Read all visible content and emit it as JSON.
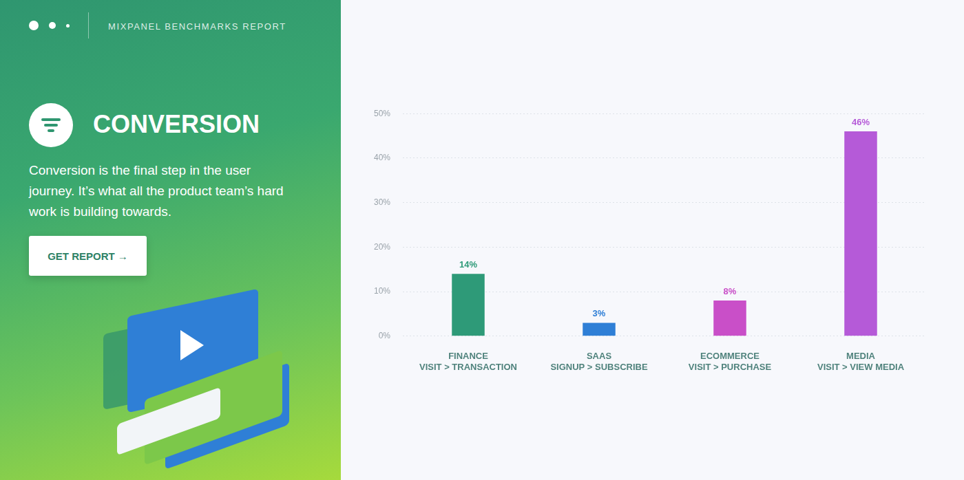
{
  "page": {
    "header": "MIXPANEL BENCHMARKS REPORT",
    "title": "CONVERSION",
    "description": "Conversion is the final step in the user journey. It’s what all the product team’s hard work is building towards.",
    "button": "GET REPORT →"
  },
  "chart_data": {
    "type": "bar",
    "categories": [
      [
        "FINANCE",
        "VISIT > TRANSACTION"
      ],
      [
        "SAAS",
        "SIGNUP > SUBSCRIBE"
      ],
      [
        "ECOMMERCE",
        "VISIT > PURCHASE"
      ],
      [
        "MEDIA",
        "VISIT > VIEW MEDIA"
      ]
    ],
    "values": [
      14,
      3,
      8,
      46
    ],
    "value_labels": [
      "14%",
      "3%",
      "8%",
      "46%"
    ],
    "colors": [
      "#2e9a78",
      "#2f7fd6",
      "#c94fc8",
      "#b55ad8"
    ],
    "ylim": [
      0,
      50
    ],
    "yticks": [
      {
        "value": 0,
        "label": "0%"
      },
      {
        "value": 10,
        "label": "10%"
      },
      {
        "value": 20,
        "label": "20%"
      },
      {
        "value": 30,
        "label": "30%"
      },
      {
        "value": 40,
        "label": "40%"
      },
      {
        "value": 50,
        "label": "50%"
      }
    ],
    "grid": true,
    "data_labels": true
  }
}
